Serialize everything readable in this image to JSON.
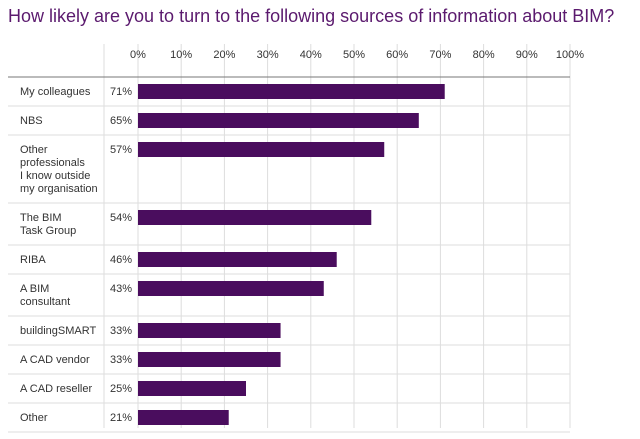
{
  "chart_data": {
    "type": "bar",
    "orientation": "horizontal",
    "title": "How likely are you to turn to the following sources of information about BIM?",
    "xlabel": "",
    "ylabel": "",
    "xlim": [
      0,
      100
    ],
    "ticks": [
      "0%",
      "10%",
      "20%",
      "30%",
      "40%",
      "50%",
      "60%",
      "70%",
      "80%",
      "90%",
      "100%"
    ],
    "categories": [
      "My colleagues",
      "NBS",
      "Other professionals I know outside my organisation",
      "The BIM Task Group",
      "RIBA",
      "A BIM consultant",
      "buildingSMART",
      "A CAD vendor",
      "A CAD reseller",
      "Other"
    ],
    "category_lines": [
      [
        "My colleagues"
      ],
      [
        "NBS"
      ],
      [
        "Other",
        "professionals",
        "I know outside",
        "my organisation"
      ],
      [
        "The BIM",
        "Task Group"
      ],
      [
        "RIBA"
      ],
      [
        "A BIM",
        "consultant"
      ],
      [
        "buildingSMART"
      ],
      [
        "A CAD vendor"
      ],
      [
        "A CAD reseller"
      ],
      [
        "Other"
      ]
    ],
    "values": [
      71,
      65,
      57,
      54,
      46,
      43,
      33,
      33,
      25,
      21
    ],
    "value_labels": [
      "71%",
      "65%",
      "57%",
      "54%",
      "46%",
      "43%",
      "33%",
      "33%",
      "25%",
      "21%"
    ],
    "grid": true,
    "legend": "none",
    "bar_color": "#4a0d5e",
    "title_color": "#5b1a6e"
  }
}
